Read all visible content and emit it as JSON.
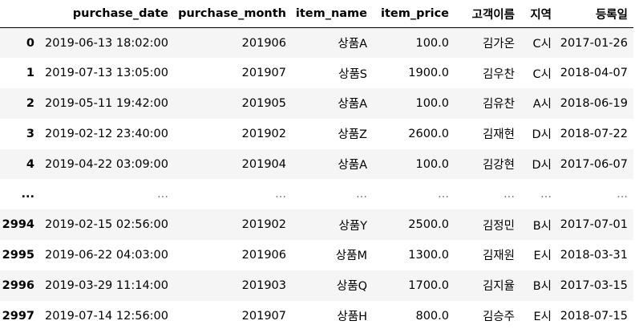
{
  "table": {
    "columns": [
      "",
      "purchase_date",
      "purchase_month",
      "item_name",
      "item_price",
      "고객이름",
      "지역",
      "등록일"
    ],
    "rows": [
      [
        "0",
        "2019-06-13 18:02:00",
        "201906",
        "상품A",
        "100.0",
        "김가온",
        "C시",
        "2017-01-26"
      ],
      [
        "1",
        "2019-07-13 13:05:00",
        "201907",
        "상품S",
        "1900.0",
        "김우찬",
        "C시",
        "2018-04-07"
      ],
      [
        "2",
        "2019-05-11 19:42:00",
        "201905",
        "상품A",
        "100.0",
        "김유찬",
        "A시",
        "2018-06-19"
      ],
      [
        "3",
        "2019-02-12 23:40:00",
        "201902",
        "상품Z",
        "2600.0",
        "김재현",
        "D시",
        "2018-07-22"
      ],
      [
        "4",
        "2019-04-22 03:09:00",
        "201904",
        "상품A",
        "100.0",
        "김강현",
        "D시",
        "2017-06-07"
      ],
      [
        "...",
        "...",
        "...",
        "...",
        "...",
        "...",
        "...",
        "..."
      ],
      [
        "2994",
        "2019-02-15 02:56:00",
        "201902",
        "상품Y",
        "2500.0",
        "김정민",
        "B시",
        "2017-07-01"
      ],
      [
        "2995",
        "2019-06-22 04:03:00",
        "201906",
        "상품M",
        "1300.0",
        "김재원",
        "E시",
        "2018-03-31"
      ],
      [
        "2996",
        "2019-03-29 11:14:00",
        "201903",
        "상품Q",
        "1700.0",
        "김지율",
        "B시",
        "2017-03-15"
      ],
      [
        "2997",
        "2019-07-14 12:56:00",
        "201907",
        "상품H",
        "800.0",
        "김승주",
        "E시",
        "2018-07-15"
      ]
    ]
  },
  "colors": {
    "text": "#000000",
    "ellipsis_text": "#777777",
    "row_stripe": "#f5f5f5",
    "background": "#ffffff"
  }
}
